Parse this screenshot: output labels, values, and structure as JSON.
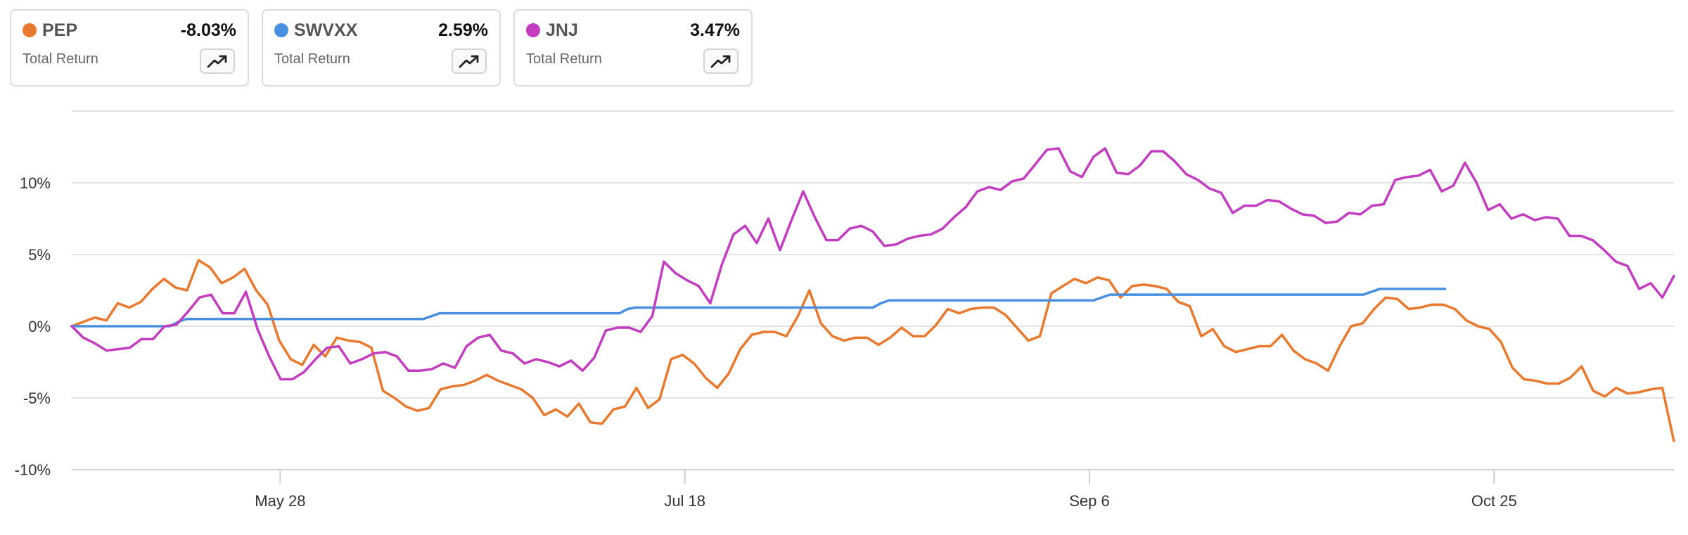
{
  "cards": [
    {
      "ticker": "PEP",
      "value": "-8.03%",
      "label": "Total Return",
      "color": "#E8792E",
      "icon": "trend-up-icon"
    },
    {
      "ticker": "SWVXX",
      "value": "2.59%",
      "label": "Total Return",
      "color": "#4A90E2",
      "icon": "trend-up-icon"
    },
    {
      "ticker": "JNJ",
      "value": "3.47%",
      "label": "Total Return",
      "color": "#C23DC0",
      "icon": "trend-up-icon"
    }
  ],
  "chart_data": {
    "type": "line",
    "ylim": [
      -10,
      15
    ],
    "yticks": [
      -10,
      -5,
      0,
      5,
      10
    ],
    "ytick_labels": [
      "-10%",
      "-5%",
      "0%",
      "5%",
      "10%"
    ],
    "xlim": [
      0,
      196
    ],
    "xticks": [
      {
        "label": "May 28",
        "x": 25.5
      },
      {
        "label": "Jul 18",
        "x": 75
      },
      {
        "label": "Sep 6",
        "x": 124.5
      },
      {
        "label": "Oct 25",
        "x": 174
      }
    ],
    "grid": true,
    "series": [
      {
        "name": "PEP",
        "color": "#E8792E",
        "points": [
          [
            0,
            0
          ],
          [
            1,
            0.3
          ],
          [
            2,
            0.6
          ],
          [
            3,
            0.4
          ],
          [
            4,
            1.6
          ],
          [
            5,
            1.3
          ],
          [
            6,
            1.7
          ],
          [
            7,
            2.6
          ],
          [
            8,
            3.3
          ],
          [
            9,
            2.7
          ],
          [
            10,
            2.5
          ],
          [
            11,
            4.6
          ],
          [
            12,
            4.1
          ],
          [
            13,
            3.0
          ],
          [
            14,
            3.4
          ],
          [
            15,
            4.0
          ],
          [
            16,
            2.5
          ],
          [
            17,
            1.5
          ],
          [
            18,
            -1.0
          ],
          [
            19,
            -2.3
          ],
          [
            20,
            -2.7
          ],
          [
            21,
            -1.3
          ],
          [
            22,
            -2.1
          ],
          [
            23,
            -0.8
          ],
          [
            24,
            -1.0
          ],
          [
            25,
            -1.1
          ],
          [
            26,
            -1.5
          ],
          [
            27,
            -4.5
          ],
          [
            28,
            -5.0
          ],
          [
            29,
            -5.6
          ],
          [
            30,
            -5.9
          ],
          [
            31,
            -5.7
          ],
          [
            32,
            -4.4
          ],
          [
            33,
            -4.2
          ],
          [
            34,
            -4.1
          ],
          [
            35,
            -3.8
          ],
          [
            36,
            -3.4
          ],
          [
            37,
            -3.8
          ],
          [
            38,
            -4.1
          ],
          [
            39,
            -4.4
          ],
          [
            40,
            -5.0
          ],
          [
            41,
            -6.2
          ],
          [
            42,
            -5.8
          ],
          [
            43,
            -6.3
          ],
          [
            44,
            -5.4
          ],
          [
            45,
            -6.7
          ],
          [
            46,
            -6.8
          ],
          [
            47,
            -5.8
          ],
          [
            48,
            -5.6
          ],
          [
            49,
            -4.3
          ],
          [
            50,
            -5.7
          ],
          [
            51,
            -5.1
          ],
          [
            52,
            -2.3
          ],
          [
            53,
            -2.0
          ],
          [
            54,
            -2.6
          ],
          [
            55,
            -3.6
          ],
          [
            56,
            -4.3
          ],
          [
            57,
            -3.3
          ],
          [
            58,
            -1.6
          ],
          [
            59,
            -0.6
          ],
          [
            60,
            -0.4
          ],
          [
            61,
            -0.4
          ],
          [
            62,
            -0.7
          ],
          [
            63,
            0.7
          ],
          [
            64,
            2.5
          ],
          [
            65,
            0.2
          ],
          [
            66,
            -0.7
          ],
          [
            67,
            -1.0
          ],
          [
            68,
            -0.8
          ],
          [
            69,
            -0.8
          ],
          [
            70,
            -1.3
          ],
          [
            71,
            -0.8
          ],
          [
            72,
            -0.1
          ],
          [
            73,
            -0.7
          ],
          [
            74,
            -0.7
          ],
          [
            75,
            0.1
          ],
          [
            76,
            1.2
          ],
          [
            77,
            0.9
          ],
          [
            78,
            1.2
          ],
          [
            79,
            1.3
          ],
          [
            80,
            1.3
          ],
          [
            81,
            0.8
          ],
          [
            82,
            -0.1
          ],
          [
            83,
            -1.0
          ],
          [
            84,
            -0.7
          ],
          [
            85,
            2.3
          ],
          [
            86,
            2.8
          ],
          [
            87,
            3.3
          ],
          [
            88,
            3.0
          ],
          [
            89,
            3.4
          ],
          [
            90,
            3.2
          ],
          [
            91,
            2.0
          ],
          [
            92,
            2.8
          ],
          [
            93,
            2.9
          ],
          [
            94,
            2.8
          ],
          [
            95,
            2.6
          ],
          [
            96,
            1.7
          ],
          [
            97,
            1.4
          ],
          [
            98,
            -0.7
          ],
          [
            99,
            -0.2
          ],
          [
            100,
            -1.4
          ],
          [
            101,
            -1.8
          ],
          [
            102,
            -1.6
          ],
          [
            103,
            -1.4
          ],
          [
            104,
            -1.4
          ],
          [
            105,
            -0.6
          ],
          [
            106,
            -1.7
          ],
          [
            107,
            -2.3
          ],
          [
            108,
            -2.6
          ],
          [
            109,
            -3.1
          ],
          [
            110,
            -1.4
          ],
          [
            111,
            0.0
          ],
          [
            112,
            0.2
          ],
          [
            113,
            1.2
          ],
          [
            114,
            2.0
          ],
          [
            115,
            1.9
          ],
          [
            116,
            1.2
          ],
          [
            117,
            1.3
          ],
          [
            118,
            1.5
          ],
          [
            119,
            1.5
          ],
          [
            120,
            1.2
          ],
          [
            121,
            0.4
          ],
          [
            122,
            0.0
          ],
          [
            123,
            -0.2
          ],
          [
            124,
            -1.1
          ],
          [
            125,
            -2.9
          ],
          [
            126,
            -3.7
          ],
          [
            127,
            -3.8
          ],
          [
            128,
            -4.0
          ],
          [
            129,
            -4.0
          ],
          [
            130,
            -3.6
          ],
          [
            131,
            -2.8
          ],
          [
            132,
            -4.5
          ],
          [
            133,
            -4.9
          ],
          [
            134,
            -4.3
          ],
          [
            135,
            -4.7
          ],
          [
            136,
            -4.6
          ],
          [
            137,
            -4.4
          ],
          [
            138,
            -4.3
          ],
          [
            139,
            -8.0
          ]
        ],
        "x_scale": 1.41
      },
      {
        "name": "SWVXX",
        "color": "#4A90E2",
        "points": [
          [
            0,
            0
          ],
          [
            12,
            0
          ],
          [
            13,
            0.3
          ],
          [
            14,
            0.5
          ],
          [
            43,
            0.5
          ],
          [
            44,
            0.7
          ],
          [
            45,
            0.9
          ],
          [
            67,
            0.9
          ],
          [
            68,
            1.2
          ],
          [
            69,
            1.3
          ],
          [
            98,
            1.3
          ],
          [
            99,
            1.6
          ],
          [
            100,
            1.8
          ],
          [
            125,
            1.8
          ],
          [
            126,
            2.0
          ],
          [
            127,
            2.2
          ],
          [
            158,
            2.2
          ],
          [
            159,
            2.4
          ],
          [
            160,
            2.6
          ],
          [
            168,
            2.6
          ]
        ],
        "x_scale": 1.0
      },
      {
        "name": "JNJ",
        "color": "#C23DC0",
        "points": [
          [
            0,
            0
          ],
          [
            1,
            -0.8
          ],
          [
            2,
            -1.2
          ],
          [
            3,
            -1.7
          ],
          [
            4,
            -1.6
          ],
          [
            5,
            -1.5
          ],
          [
            6,
            -0.9
          ],
          [
            7,
            -0.9
          ],
          [
            8,
            0.0
          ],
          [
            9,
            0.1
          ],
          [
            10,
            1.0
          ],
          [
            11,
            2.0
          ],
          [
            12,
            2.2
          ],
          [
            13,
            0.9
          ],
          [
            14,
            0.9
          ],
          [
            15,
            2.4
          ],
          [
            16,
            -0.2
          ],
          [
            17,
            -2.1
          ],
          [
            18,
            -3.7
          ],
          [
            19,
            -3.7
          ],
          [
            20,
            -3.2
          ],
          [
            21,
            -2.3
          ],
          [
            22,
            -1.5
          ],
          [
            23,
            -1.4
          ],
          [
            24,
            -2.6
          ],
          [
            25,
            -2.3
          ],
          [
            26,
            -1.9
          ],
          [
            27,
            -1.8
          ],
          [
            28,
            -2.1
          ],
          [
            29,
            -3.1
          ],
          [
            30,
            -3.1
          ],
          [
            31,
            -3.0
          ],
          [
            32,
            -2.6
          ],
          [
            33,
            -2.9
          ],
          [
            34,
            -1.4
          ],
          [
            35,
            -0.8
          ],
          [
            36,
            -0.6
          ],
          [
            37,
            -1.7
          ],
          [
            38,
            -1.9
          ],
          [
            39,
            -2.6
          ],
          [
            40,
            -2.3
          ],
          [
            41,
            -2.5
          ],
          [
            42,
            -2.8
          ],
          [
            43,
            -2.4
          ],
          [
            44,
            -3.1
          ],
          [
            45,
            -2.2
          ],
          [
            46,
            -0.3
          ],
          [
            47,
            -0.1
          ],
          [
            48,
            -0.1
          ],
          [
            49,
            -0.4
          ],
          [
            50,
            0.7
          ],
          [
            51,
            4.5
          ],
          [
            52,
            3.7
          ],
          [
            53,
            3.2
          ],
          [
            54,
            2.8
          ],
          [
            55,
            1.6
          ],
          [
            56,
            4.3
          ],
          [
            57,
            6.4
          ],
          [
            58,
            7.0
          ],
          [
            59,
            5.8
          ],
          [
            60,
            7.5
          ],
          [
            61,
            5.3
          ],
          [
            62,
            7.4
          ],
          [
            63,
            9.4
          ],
          [
            64,
            7.6
          ],
          [
            65,
            6.0
          ],
          [
            66,
            6.0
          ],
          [
            67,
            6.8
          ],
          [
            68,
            7.0
          ],
          [
            69,
            6.6
          ],
          [
            70,
            5.6
          ],
          [
            71,
            5.7
          ],
          [
            72,
            6.1
          ],
          [
            73,
            6.3
          ],
          [
            74,
            6.4
          ],
          [
            75,
            6.8
          ],
          [
            76,
            7.6
          ],
          [
            77,
            8.3
          ],
          [
            78,
            9.4
          ],
          [
            79,
            9.7
          ],
          [
            80,
            9.5
          ],
          [
            81,
            10.1
          ],
          [
            82,
            10.3
          ],
          [
            83,
            11.3
          ],
          [
            84,
            12.3
          ],
          [
            85,
            12.4
          ],
          [
            86,
            10.8
          ],
          [
            87,
            10.4
          ],
          [
            88,
            11.8
          ],
          [
            89,
            12.4
          ],
          [
            90,
            10.7
          ],
          [
            91,
            10.6
          ],
          [
            92,
            11.2
          ],
          [
            93,
            12.2
          ],
          [
            94,
            12.2
          ],
          [
            95,
            11.5
          ],
          [
            96,
            10.6
          ],
          [
            97,
            10.2
          ],
          [
            98,
            9.6
          ],
          [
            99,
            9.3
          ],
          [
            100,
            7.9
          ],
          [
            101,
            8.4
          ],
          [
            102,
            8.4
          ],
          [
            103,
            8.8
          ],
          [
            104,
            8.7
          ],
          [
            105,
            8.2
          ],
          [
            106,
            7.8
          ],
          [
            107,
            7.7
          ],
          [
            108,
            7.2
          ],
          [
            109,
            7.3
          ],
          [
            110,
            7.9
          ],
          [
            111,
            7.8
          ],
          [
            112,
            8.4
          ],
          [
            113,
            8.5
          ],
          [
            114,
            10.2
          ],
          [
            115,
            10.4
          ],
          [
            116,
            10.5
          ],
          [
            117,
            10.9
          ],
          [
            118,
            9.4
          ],
          [
            119,
            9.8
          ],
          [
            120,
            11.4
          ],
          [
            121,
            10.0
          ],
          [
            122,
            8.1
          ],
          [
            123,
            8.5
          ],
          [
            124,
            7.5
          ],
          [
            125,
            7.8
          ],
          [
            126,
            7.4
          ],
          [
            127,
            7.6
          ],
          [
            128,
            7.5
          ],
          [
            129,
            6.3
          ],
          [
            130,
            6.3
          ],
          [
            131,
            6.0
          ],
          [
            132,
            5.3
          ],
          [
            133,
            4.5
          ],
          [
            134,
            4.2
          ],
          [
            135,
            2.6
          ],
          [
            136,
            3.0
          ],
          [
            137,
            2.0
          ],
          [
            138,
            3.5
          ]
        ],
        "x_scale": 1.4203
      }
    ]
  }
}
